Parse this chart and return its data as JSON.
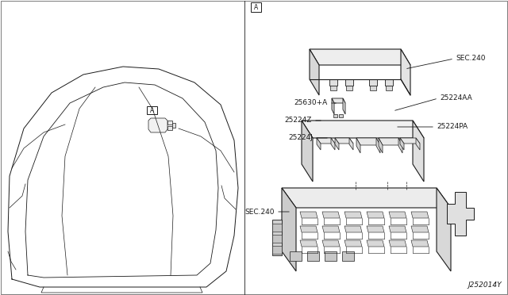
{
  "background_color": "#ffffff",
  "line_color": "#1a1a1a",
  "line_width": 0.8,
  "labels": {
    "sec240_top": "SEC.240",
    "l25224AA": "25224AA",
    "l25630A": "25630+A",
    "l25224Z": "25224Z",
    "l25224PA": "25224PA",
    "l25224J": "25224J",
    "sec240_bot": "SEC.240",
    "part_num": "J252014Y",
    "view_A": "A"
  },
  "font_size": 6.5,
  "fig_width": 6.4,
  "fig_height": 3.72
}
